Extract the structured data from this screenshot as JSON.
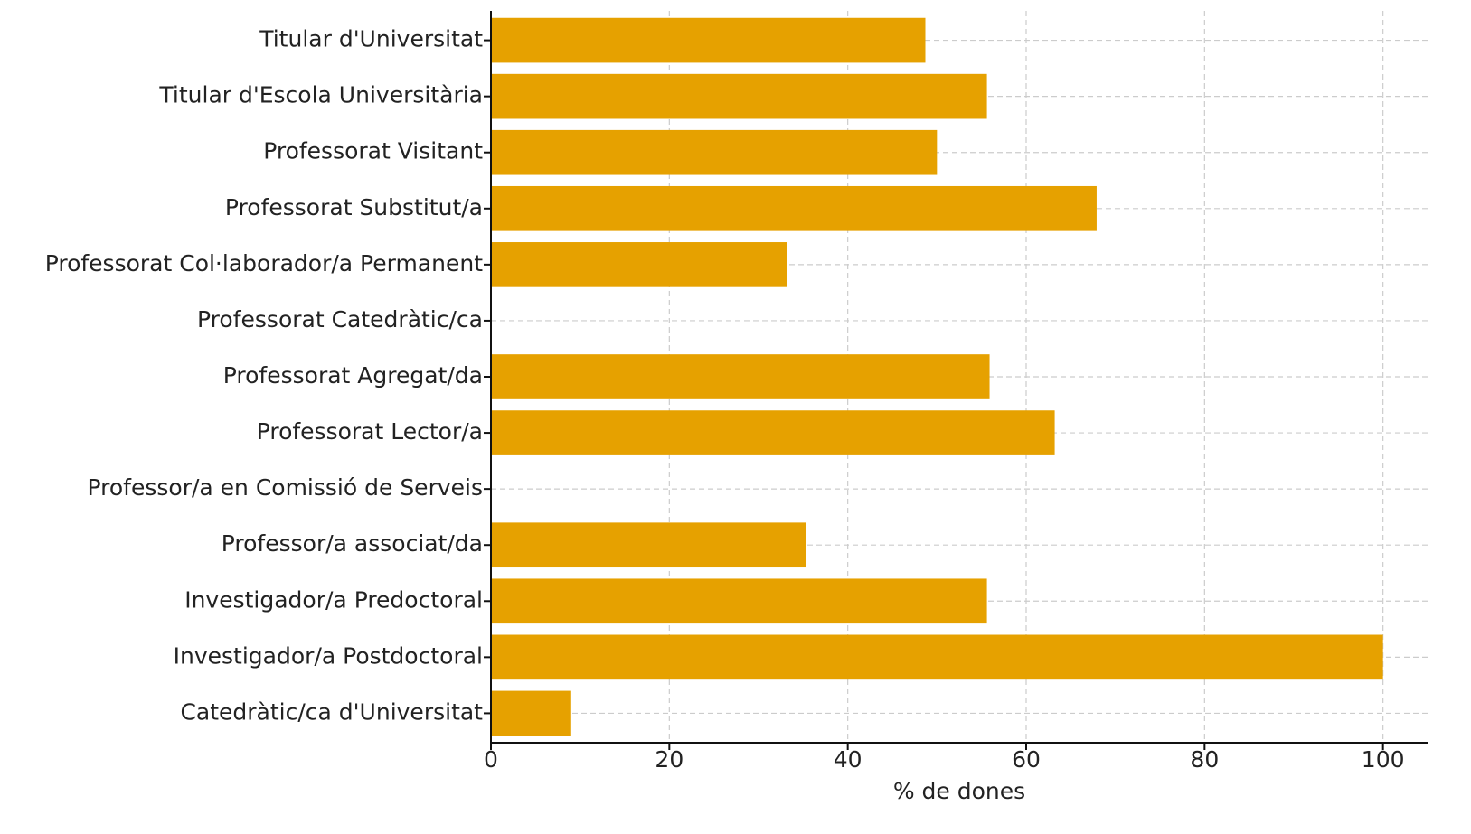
{
  "chart_data": {
    "type": "barh",
    "xlabel": "% de dones",
    "categories": [
      "Titular d'Universitat",
      "Titular d'Escola Universitària",
      "Professorat Visitant",
      "Professorat Substitut/a",
      "Professorat Col·laborador/a Permanent",
      "Professorat Catedràtic/ca",
      "Professorat Agregat/da",
      "Professorat Lector/a",
      "Professor/a en Comissió de Serveis",
      "Professor/a associat/da",
      "Investigador/a Predoctoral",
      "Investigador/a Postdoctoral",
      "Catedràtic/ca d'Universitat"
    ],
    "values": [
      48.7,
      55.6,
      50.0,
      67.9,
      33.2,
      0,
      55.9,
      63.2,
      0,
      35.3,
      55.6,
      100,
      9.0
    ],
    "color": "#e6a100",
    "xlim": [
      0,
      105
    ],
    "xticks": [
      0,
      20,
      40,
      60,
      80,
      100
    ],
    "grid": true
  }
}
